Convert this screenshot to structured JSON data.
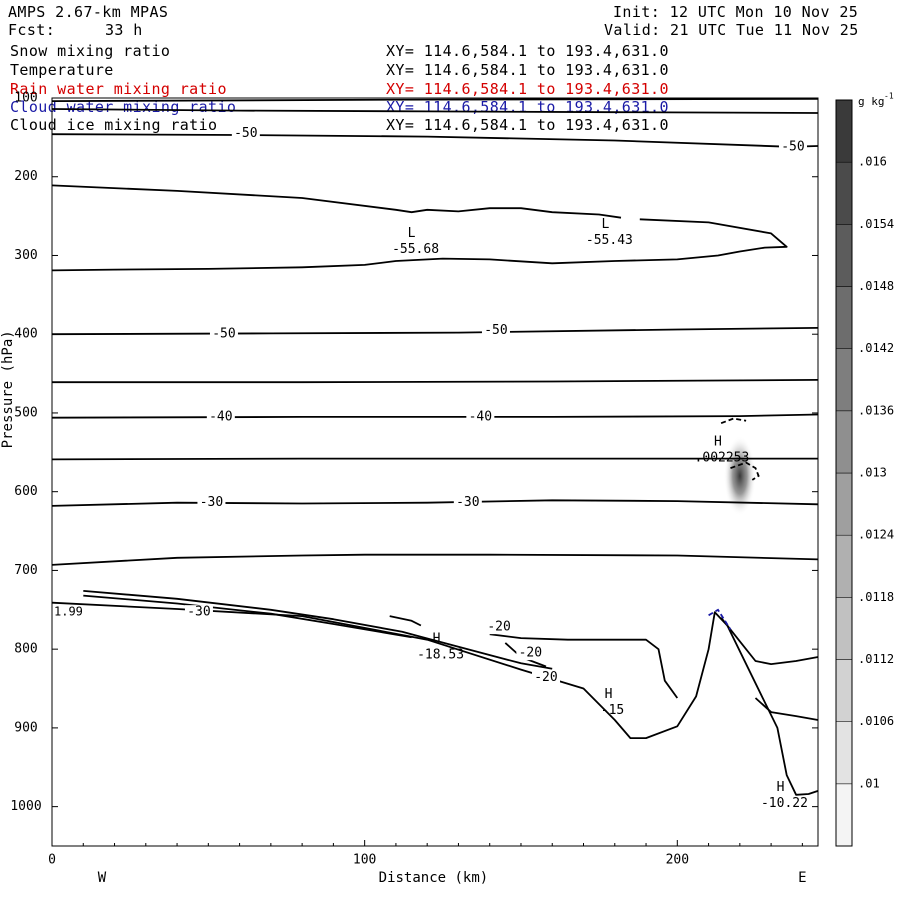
{
  "header": {
    "model": "AMPS 2.67-km MPAS",
    "fcst_label": "Fcst:",
    "fcst_value": "33 h",
    "init": "Init: 12 UTC Mon 10 Nov 25",
    "valid": "Valid: 21 UTC Tue 11 Nov 25"
  },
  "fields": [
    {
      "name": "Snow mixing ratio",
      "xy": "XY= 114.6,584.1 to 193.4,631.0",
      "color": "#000000"
    },
    {
      "name": "Temperature",
      "xy": "XY= 114.6,584.1 to 193.4,631.0",
      "color": "#000000"
    },
    {
      "name": "Rain water mixing ratio",
      "xy": "XY= 114.6,584.1 to 193.4,631.0",
      "color": "#d40000"
    },
    {
      "name": "Cloud water mixing ratio",
      "xy": "XY= 114.6,584.1 to 193.4,631.0",
      "color": "#1a1aa6"
    },
    {
      "name": "Cloud ice mixing ratio",
      "xy": "XY= 114.6,584.1 to 193.4,631.0",
      "color": "#000000"
    }
  ],
  "chart_data": {
    "type": "cross-section contour",
    "xlabel": "Distance (km)",
    "ylabel": "Pressure (hPa)",
    "x_ticks": [
      0,
      100,
      200
    ],
    "y_ticks": [
      100,
      200,
      300,
      400,
      500,
      600,
      700,
      800,
      900,
      1000
    ],
    "xlim": [
      0,
      245
    ],
    "ylim": [
      1050,
      100
    ],
    "y_scale": "linear-in-pressure",
    "end_labels": {
      "left": "W",
      "right": "E"
    },
    "colorbar": {
      "units": "g kg",
      "units_exponent": "-1",
      "ticks": [
        ".01",
        ".0106",
        ".0112",
        ".0118",
        ".0124",
        ".013",
        ".0136",
        ".0142",
        ".0148",
        ".0154",
        ".016"
      ],
      "low_color": "#f4f4f4",
      "high_color": "#3a3a3a"
    },
    "contour_labels": [
      {
        "text": "-50",
        "x": 62,
        "p": 145
      },
      {
        "text": "-50",
        "x": 237,
        "p": 162
      },
      {
        "text": "-50",
        "x": 55,
        "p": 400
      },
      {
        "text": "-50",
        "x": 142,
        "p": 395
      },
      {
        "text": "-40",
        "x": 54,
        "p": 505
      },
      {
        "text": "-40",
        "x": 137,
        "p": 505
      },
      {
        "text": "-30",
        "x": 51,
        "p": 614
      },
      {
        "text": "-30",
        "x": 133,
        "p": 614
      },
      {
        "text": "-30",
        "x": 47,
        "p": 753
      },
      {
        "text": "-20",
        "x": 143,
        "p": 772
      },
      {
        "text": "-20",
        "x": 153,
        "p": 805
      },
      {
        "text": "-20",
        "x": 158,
        "p": 836
      }
    ],
    "extrema": [
      {
        "kind": "L",
        "value": "-55.68",
        "x": 115,
        "p": 282
      },
      {
        "kind": "L",
        "value": "-55.43",
        "x": 177,
        "p": 271
      },
      {
        "kind": "H",
        "value": ".002253",
        "x": 213,
        "p": 547
      },
      {
        "kind": "H",
        "value": "-18.53",
        "x": 123,
        "p": 797
      },
      {
        "kind": "H",
        "value": "-15",
        "x": 178,
        "p": 868
      },
      {
        "kind": "H",
        "value": "-10.22",
        "x": 233,
        "p": 986
      }
    ],
    "edge_label": {
      "text": "1.99",
      "x": 0,
      "p": 745
    },
    "temperature_contours": [
      {
        "points": [
          [
            0,
            114
          ],
          [
            60,
            116
          ],
          [
            120,
            117
          ],
          [
            180,
            118
          ],
          [
            245,
            119
          ]
        ]
      },
      {
        "points": [
          [
            0,
            104
          ],
          [
            120,
            102
          ],
          [
            245,
            101
          ]
        ]
      },
      {
        "points": [
          [
            0,
            146
          ],
          [
            60,
            147
          ],
          [
            120,
            149
          ],
          [
            180,
            154
          ],
          [
            236,
            162
          ],
          [
            245,
            161
          ]
        ]
      },
      {
        "points": [
          [
            0,
            211
          ],
          [
            40,
            218
          ],
          [
            80,
            227
          ],
          [
            110,
            242
          ],
          [
            115,
            245
          ],
          [
            120,
            242
          ],
          [
            130,
            244
          ],
          [
            140,
            240
          ],
          [
            150,
            240
          ],
          [
            160,
            245
          ],
          [
            175,
            248
          ],
          [
            182,
            252
          ]
        ]
      },
      {
        "points": [
          [
            188,
            254
          ],
          [
            210,
            258
          ],
          [
            230,
            272
          ],
          [
            235,
            289
          ],
          [
            228,
            290
          ],
          [
            220,
            295
          ],
          [
            213,
            300
          ],
          [
            200,
            305
          ],
          [
            180,
            307
          ],
          [
            160,
            310
          ],
          [
            140,
            305
          ],
          [
            125,
            304
          ],
          [
            110,
            307
          ],
          [
            100,
            312
          ],
          [
            80,
            315
          ],
          [
            50,
            317
          ],
          [
            20,
            318
          ],
          [
            0,
            319
          ]
        ]
      },
      {
        "points": [
          [
            0,
            400
          ],
          [
            70,
            399
          ],
          [
            130,
            398
          ],
          [
            200,
            394
          ],
          [
            245,
            392
          ]
        ]
      },
      {
        "points": [
          [
            0,
            461
          ],
          [
            80,
            461
          ],
          [
            160,
            460
          ],
          [
            245,
            458
          ]
        ]
      },
      {
        "points": [
          [
            0,
            506
          ],
          [
            80,
            505
          ],
          [
            160,
            505
          ],
          [
            220,
            504
          ],
          [
            245,
            502
          ]
        ]
      },
      {
        "points": [
          [
            0,
            559
          ],
          [
            80,
            558
          ],
          [
            160,
            558
          ],
          [
            245,
            558
          ]
        ]
      },
      {
        "points": [
          [
            0,
            618
          ],
          [
            40,
            614
          ],
          [
            80,
            615
          ],
          [
            120,
            614
          ],
          [
            160,
            611
          ],
          [
            200,
            612
          ],
          [
            245,
            616
          ]
        ]
      },
      {
        "points": [
          [
            0,
            693
          ],
          [
            40,
            684
          ],
          [
            80,
            681
          ],
          [
            100,
            680
          ],
          [
            140,
            680
          ],
          [
            200,
            681
          ],
          [
            245,
            686
          ]
        ]
      },
      {
        "points": [
          [
            0,
            741
          ],
          [
            40,
            749
          ],
          [
            80,
            758
          ],
          [
            120,
            788
          ],
          [
            150,
            826
          ],
          [
            170,
            850
          ],
          [
            180,
            890
          ],
          [
            185,
            913
          ],
          [
            190,
            913
          ],
          [
            200,
            898
          ],
          [
            206,
            860
          ],
          [
            210,
            800
          ],
          [
            212,
            753
          ],
          [
            216,
            770
          ],
          [
            224,
            835
          ],
          [
            232,
            900
          ],
          [
            235,
            960
          ],
          [
            238,
            985
          ],
          [
            242,
            984
          ],
          [
            245,
            980
          ]
        ]
      },
      {
        "points": [
          [
            10,
            726
          ],
          [
            40,
            736
          ],
          [
            70,
            750
          ],
          [
            90,
            762
          ],
          [
            112,
            778
          ],
          [
            130,
            797
          ],
          [
            150,
            818
          ],
          [
            160,
            825
          ]
        ]
      },
      {
        "points": [
          [
            10,
            732
          ],
          [
            40,
            742
          ],
          [
            70,
            755
          ],
          [
            90,
            768
          ],
          [
            115,
            785
          ]
        ]
      },
      {
        "points": [
          [
            108,
            758
          ],
          [
            115,
            764
          ],
          [
            118,
            770
          ]
        ]
      },
      {
        "points": [
          [
            145,
            792
          ],
          [
            150,
            810
          ],
          [
            158,
            822
          ]
        ]
      },
      {
        "points": [
          [
            140,
            781
          ],
          [
            150,
            786
          ],
          [
            165,
            788
          ],
          [
            180,
            788
          ],
          [
            190,
            788
          ],
          [
            194,
            800
          ],
          [
            196,
            840
          ],
          [
            200,
            862
          ]
        ]
      },
      {
        "points": [
          [
            214,
            760
          ],
          [
            220,
            790
          ],
          [
            225,
            815
          ],
          [
            230,
            819
          ],
          [
            238,
            815
          ],
          [
            245,
            810
          ]
        ]
      },
      {
        "points": [
          [
            225,
            862
          ],
          [
            230,
            880
          ],
          [
            238,
            885
          ],
          [
            245,
            890
          ]
        ]
      }
    ],
    "dashed_contours": [
      {
        "points": [
          [
            214,
            513
          ],
          [
            218,
            507
          ],
          [
            222,
            510
          ]
        ]
      },
      {
        "points": [
          [
            217,
            570
          ],
          [
            222,
            563
          ],
          [
            225,
            570
          ],
          [
            226,
            580
          ],
          [
            224,
            585
          ]
        ]
      },
      {
        "points": [
          [
            210,
            757
          ],
          [
            213,
            750
          ],
          [
            217,
            775
          ]
        ]
      }
    ],
    "shading": [
      {
        "x": 220,
        "p": 580,
        "max": 0.0165
      }
    ]
  }
}
